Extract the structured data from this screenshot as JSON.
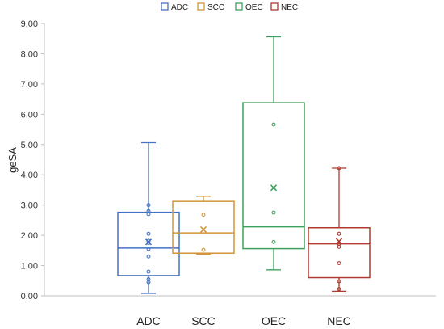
{
  "chart_data": {
    "type": "box",
    "ylabel": "geSA",
    "xlabel": "",
    "ylim": [
      0,
      9
    ],
    "yticks": [
      "0.00",
      "1.00",
      "2.00",
      "3.00",
      "4.00",
      "5.00",
      "6.00",
      "7.00",
      "8.00",
      "9.00"
    ],
    "legend_position": "top-center",
    "grid": false,
    "categories": [
      "ADC",
      "SCC",
      "OEC",
      "NEC"
    ],
    "series": [
      {
        "name": "ADC",
        "color": "#4472C4",
        "whisker_low": 0.08,
        "q1": 0.67,
        "median": 1.58,
        "q3": 2.76,
        "whisker_high": 5.06,
        "mean": 1.78,
        "points": [
          0.45,
          0.55,
          0.8,
          1.3,
          1.55,
          1.75,
          1.82,
          2.05,
          2.7,
          2.8,
          3.0
        ]
      },
      {
        "name": "SCC",
        "color": "#D4963A",
        "whisker_low": 1.38,
        "q1": 1.41,
        "median": 2.08,
        "q3": 3.12,
        "whisker_high": 3.29,
        "mean": 2.19,
        "points": [
          1.52,
          2.68
        ]
      },
      {
        "name": "OEC",
        "color": "#3DA05A",
        "whisker_low": 0.86,
        "q1": 1.56,
        "median": 2.28,
        "q3": 6.38,
        "whisker_high": 8.56,
        "mean": 3.57,
        "points": [
          1.78,
          2.75,
          5.66
        ]
      },
      {
        "name": "NEC",
        "color": "#B03A2E",
        "whisker_low": 0.15,
        "q1": 0.6,
        "median": 1.72,
        "q3": 2.25,
        "whisker_high": 4.22,
        "mean": 1.8,
        "points": [
          0.22,
          0.48,
          1.08,
          1.62,
          1.72,
          2.05,
          4.22
        ]
      }
    ]
  }
}
